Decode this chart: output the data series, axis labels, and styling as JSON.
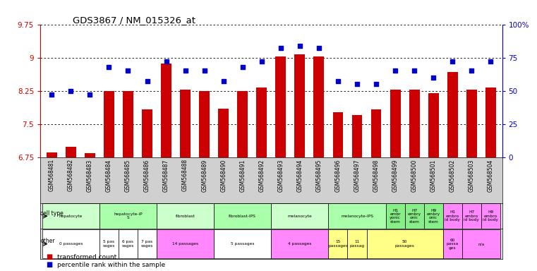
{
  "title": "GDS3867 / NM_015326_at",
  "gsm_labels": [
    "GSM568481",
    "GSM568482",
    "GSM568483",
    "GSM568484",
    "GSM568485",
    "GSM568486",
    "GSM568487",
    "GSM568488",
    "GSM568489",
    "GSM568490",
    "GSM568491",
    "GSM568492",
    "GSM568493",
    "GSM568494",
    "GSM568495",
    "GSM568496",
    "GSM568497",
    "GSM568498",
    "GSM568499",
    "GSM568500",
    "GSM568501",
    "GSM568502",
    "GSM568503",
    "GSM568504"
  ],
  "bar_values": [
    6.85,
    6.98,
    6.84,
    8.25,
    8.25,
    7.83,
    8.87,
    8.27,
    8.25,
    7.85,
    8.25,
    8.32,
    9.03,
    9.08,
    9.03,
    7.77,
    7.7,
    7.83,
    8.27,
    8.27,
    8.2,
    8.68,
    8.28,
    8.32
  ],
  "dot_percentiles": [
    47,
    50,
    47,
    68,
    65,
    57,
    72,
    65,
    65,
    57,
    68,
    72,
    82,
    84,
    82,
    57,
    55,
    55,
    65,
    65,
    60,
    72,
    65,
    72
  ],
  "ylim_left": [
    6.75,
    9.75
  ],
  "ylim_right": [
    0,
    100
  ],
  "yticks_left": [
    6.75,
    7.5,
    8.25,
    9.0,
    9.75
  ],
  "ytick_labels_left": [
    "6.75",
    "7.5",
    "8.25",
    "9",
    "9.75"
  ],
  "yticks_right": [
    0,
    25,
    50,
    75,
    100
  ],
  "ytick_labels_right": [
    "0",
    "25",
    "50",
    "75",
    "100%"
  ],
  "bar_color": "#cc0000",
  "dot_color": "#0000cc",
  "background_color": "#ffffff",
  "plot_bg_color": "#ffffff",
  "xlabel_bg": "#d0d0d0",
  "cell_type_row": [
    {
      "label": "hepatocyte",
      "start": 0,
      "end": 3,
      "color": "#ccffcc"
    },
    {
      "label": "hepatocyte-iP\nS",
      "start": 3,
      "end": 6,
      "color": "#aaffaa"
    },
    {
      "label": "fibroblast",
      "start": 6,
      "end": 9,
      "color": "#ccffcc"
    },
    {
      "label": "fibroblast-IPS",
      "start": 9,
      "end": 12,
      "color": "#aaffaa"
    },
    {
      "label": "melanocyte",
      "start": 12,
      "end": 15,
      "color": "#ccffcc"
    },
    {
      "label": "melanocyte-IPS",
      "start": 15,
      "end": 18,
      "color": "#aaffaa"
    },
    {
      "label": "H1\nembr\nyonic\nstem",
      "start": 18,
      "end": 19,
      "color": "#88ee88"
    },
    {
      "label": "H7\nembry\nonic\nstem",
      "start": 19,
      "end": 20,
      "color": "#88ee88"
    },
    {
      "label": "H9\nembry\nonic\nstem",
      "start": 20,
      "end": 21,
      "color": "#88ee88"
    },
    {
      "label": "H1\nembro\nid body",
      "start": 21,
      "end": 22,
      "color": "#ff88ff"
    },
    {
      "label": "H7\nembro\nid body",
      "start": 22,
      "end": 23,
      "color": "#ff88ff"
    },
    {
      "label": "H9\nembro\nid body",
      "start": 23,
      "end": 24,
      "color": "#ff88ff"
    }
  ],
  "other_row": [
    {
      "label": "0 passages",
      "start": 0,
      "end": 3,
      "color": "#ffffff"
    },
    {
      "label": "5 pas\nsages",
      "start": 3,
      "end": 4,
      "color": "#ffffff"
    },
    {
      "label": "6 pas\nsages",
      "start": 4,
      "end": 5,
      "color": "#ffffff"
    },
    {
      "label": "7 pas\nsages",
      "start": 5,
      "end": 6,
      "color": "#ffffff"
    },
    {
      "label": "14 passages",
      "start": 6,
      "end": 9,
      "color": "#ff88ff"
    },
    {
      "label": "5 passages",
      "start": 9,
      "end": 12,
      "color": "#ffffff"
    },
    {
      "label": "4 passages",
      "start": 12,
      "end": 15,
      "color": "#ff88ff"
    },
    {
      "label": "15\npassages",
      "start": 15,
      "end": 16,
      "color": "#ffff88"
    },
    {
      "label": "11\npassag",
      "start": 16,
      "end": 17,
      "color": "#ffff88"
    },
    {
      "label": "50\npassages",
      "start": 17,
      "end": 21,
      "color": "#ffff88"
    },
    {
      "label": "60\npassa\nges",
      "start": 21,
      "end": 22,
      "color": "#ff88ff"
    },
    {
      "label": "n/a",
      "start": 22,
      "end": 24,
      "color": "#ff88ff"
    }
  ],
  "legend": [
    {
      "color": "#cc0000",
      "label": "transformed count"
    },
    {
      "color": "#0000cc",
      "label": "percentile rank within the sample"
    }
  ]
}
